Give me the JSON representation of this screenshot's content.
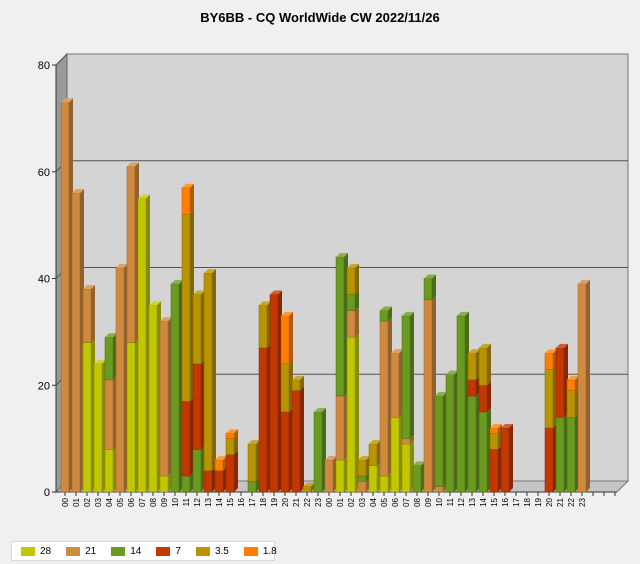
{
  "chart_data": {
    "type": "bar",
    "stacked": true,
    "style": "3d",
    "title": "BY6BB - CQ WorldWide CW 2022/11/26",
    "xlabel": "",
    "ylabel": "",
    "ylim": [
      0,
      80
    ],
    "yticks": [
      0,
      20,
      40,
      60,
      80
    ],
    "grid": true,
    "legend_position": "bottom-left",
    "categories": [
      "00",
      "01",
      "02",
      "03",
      "04",
      "05",
      "06",
      "07",
      "08",
      "09",
      "10",
      "11",
      "12",
      "13",
      "14",
      "15",
      "16",
      "17",
      "18",
      "19",
      "20",
      "21",
      "22",
      "23",
      "00",
      "01",
      "02",
      "03",
      "04",
      "05",
      "06",
      "07",
      "08",
      "09",
      "10",
      "11",
      "12",
      "13",
      "14",
      "15",
      "16",
      "17",
      "18",
      "19",
      "20",
      "21",
      "22",
      "23"
    ],
    "series": [
      {
        "name": "28",
        "color": "#c2c800",
        "values": [
          0,
          0,
          28,
          24,
          8,
          0,
          28,
          55,
          35,
          3,
          0,
          0,
          0,
          0,
          0,
          0,
          0,
          0,
          0,
          0,
          0,
          0,
          0,
          0,
          0,
          6,
          29,
          0,
          5,
          3,
          14,
          9,
          0,
          0,
          0,
          0,
          0,
          0,
          0,
          0,
          0,
          0,
          0,
          0,
          0,
          0,
          0,
          0
        ]
      },
      {
        "name": "21",
        "color": "#d08a40",
        "values": [
          73,
          56,
          10,
          0,
          13,
          42,
          33,
          0,
          0,
          29,
          0,
          0,
          0,
          0,
          0,
          0,
          0,
          0,
          0,
          0,
          0,
          0,
          0,
          0,
          6,
          12,
          5,
          2,
          0,
          29,
          12,
          1,
          0,
          36,
          1,
          0,
          0,
          0,
          0,
          0,
          0,
          0,
          0,
          0,
          0,
          0,
          0,
          39
        ]
      },
      {
        "name": "14",
        "color": "#6a9a20",
        "values": [
          0,
          0,
          0,
          0,
          8,
          0,
          0,
          0,
          0,
          0,
          39,
          3,
          8,
          0,
          0,
          0,
          0,
          2,
          0,
          0,
          0,
          0,
          0,
          15,
          0,
          26,
          3,
          1,
          0,
          2,
          0,
          23,
          5,
          4,
          17,
          22,
          33,
          18,
          15,
          0,
          0,
          0,
          0,
          0,
          0,
          14,
          14,
          0
        ]
      },
      {
        "name": "7",
        "color": "#c23800",
        "values": [
          0,
          0,
          0,
          0,
          0,
          0,
          0,
          0,
          0,
          0,
          0,
          14,
          16,
          4,
          4,
          7,
          0,
          0,
          27,
          37,
          15,
          19,
          0,
          0,
          0,
          0,
          0,
          0,
          0,
          0,
          0,
          0,
          0,
          0,
          0,
          0,
          0,
          3,
          5,
          8,
          12,
          0,
          0,
          0,
          12,
          13,
          0,
          0
        ]
      },
      {
        "name": "3.5",
        "color": "#b89400",
        "values": [
          0,
          0,
          0,
          0,
          0,
          0,
          0,
          0,
          0,
          0,
          0,
          35,
          13,
          37,
          0,
          3,
          0,
          7,
          8,
          0,
          9,
          2,
          1,
          0,
          0,
          0,
          5,
          3,
          4,
          0,
          0,
          0,
          0,
          0,
          0,
          0,
          0,
          5,
          7,
          3,
          0,
          0,
          0,
          0,
          11,
          0,
          5,
          0
        ]
      },
      {
        "name": "1.8",
        "color": "#ff7f00",
        "values": [
          0,
          0,
          0,
          0,
          0,
          0,
          0,
          0,
          0,
          0,
          0,
          5,
          0,
          0,
          2,
          1,
          0,
          0,
          0,
          0,
          9,
          0,
          0,
          0,
          0,
          0,
          0,
          0,
          0,
          0,
          0,
          0,
          0,
          0,
          0,
          0,
          0,
          0,
          0,
          1,
          0,
          0,
          0,
          0,
          3,
          0,
          2,
          0
        ]
      }
    ]
  }
}
